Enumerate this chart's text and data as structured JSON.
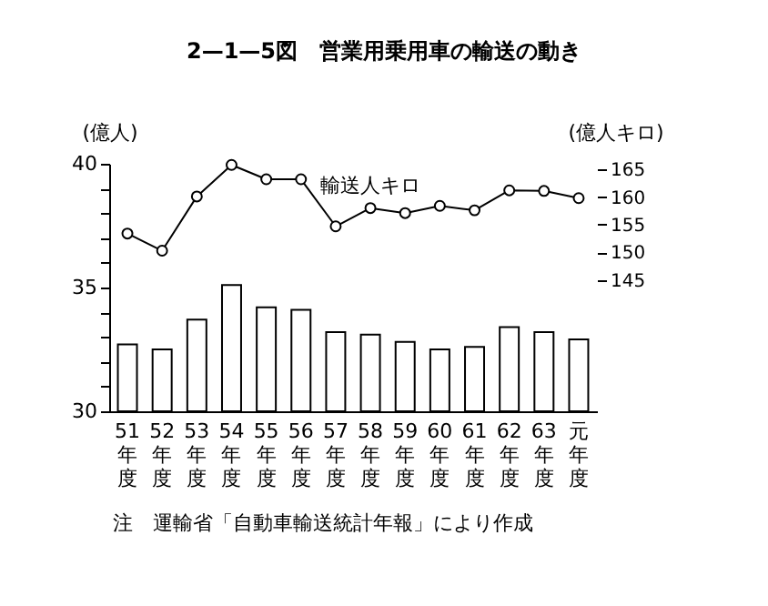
{
  "chart_data": {
    "type": "bar",
    "title": "2—1—5図　営業用乗用車の輸送の動き",
    "ylabel": "(億人)",
    "y2label": "(億人キロ)",
    "annotations": [
      "注　運輸省「自動車輸送統計年報」により作成"
    ],
    "categories": [
      "51年度",
      "52年度",
      "53年度",
      "54年度",
      "55年度",
      "56年度",
      "57年度",
      "58年度",
      "59年度",
      "60年度",
      "61年度",
      "62年度",
      "63年度",
      "元年度"
    ],
    "series": [
      {
        "color": "#ffffff",
        "values": [
          32.7,
          32.5,
          33.7,
          35.1,
          34.2,
          34.1,
          33.2,
          33.1,
          32.8,
          32.5,
          32.6,
          33.4,
          33.2,
          32.9
        ]
      },
      {
        "type": "line",
        "axis": "y2",
        "name": "輸送人キロ",
        "color": "#000000",
        "values": [
          153.4,
          150.3,
          160.1,
          165.8,
          163.2,
          163.2,
          154.7,
          158.0,
          157.1,
          158.4,
          157.6,
          161.2,
          161.1,
          159.8
        ]
      }
    ],
    "ylim": [
      30,
      40
    ],
    "yticks": [
      30,
      {
        "value": 31,
        "label": null
      },
      {
        "value": 32,
        "label": null
      },
      {
        "value": 33,
        "label": null
      },
      {
        "value": 34,
        "label": null
      },
      35,
      {
        "value": 36,
        "label": null
      },
      {
        "value": 37,
        "label": null
      },
      {
        "value": 38,
        "label": null
      },
      {
        "value": 39,
        "label": null
      },
      40
    ],
    "y2lim": [
      121.3,
      166
    ],
    "y2ticks": [
      145,
      150,
      155,
      160,
      165
    ],
    "marker": "circle",
    "line_style": "solid",
    "grid": false
  }
}
